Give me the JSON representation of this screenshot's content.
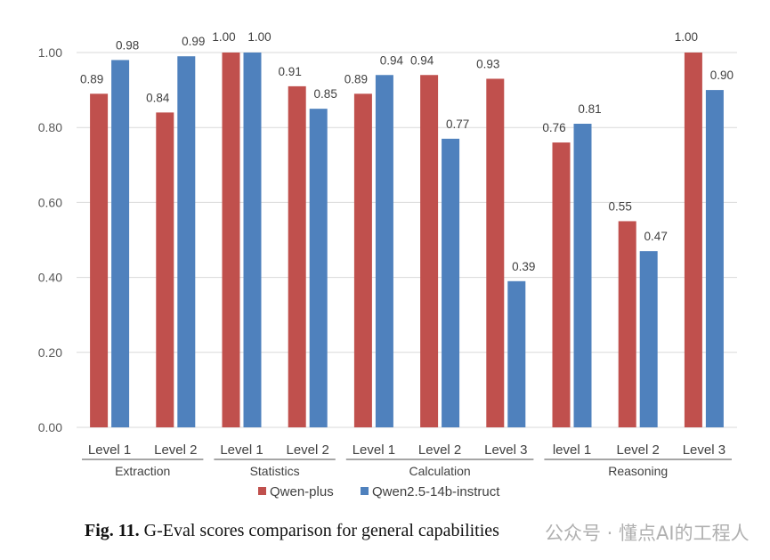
{
  "chart_data": {
    "type": "bar",
    "title": "",
    "xlabel": "",
    "ylabel": "",
    "ylim": [
      0,
      1.0
    ],
    "yticks": [
      "0.00",
      "0.20",
      "0.40",
      "0.60",
      "0.80",
      "1.00"
    ],
    "grid": true,
    "legend_position": "bottom",
    "categories": [
      "Level 1",
      "Level 2",
      "Level 1",
      "Level 2",
      "Level 1",
      "Level 2",
      "Level 3",
      "level 1",
      "Level 2",
      "Level 3"
    ],
    "groups": [
      {
        "name": "Extraction",
        "span": 2
      },
      {
        "name": "Statistics",
        "span": 2
      },
      {
        "name": "Calculation",
        "span": 3
      },
      {
        "name": "Reasoning",
        "span": 3
      }
    ],
    "series": [
      {
        "name": "Qwen-plus",
        "color": "#C0504D",
        "values": [
          0.89,
          0.84,
          1.0,
          0.91,
          0.89,
          0.94,
          0.93,
          0.76,
          0.55,
          1.0
        ]
      },
      {
        "name": "Qwen2.5-14b-instruct",
        "color": "#4F81BD",
        "values": [
          0.98,
          0.99,
          1.0,
          0.85,
          0.94,
          0.77,
          0.39,
          0.81,
          0.47,
          0.9
        ]
      }
    ]
  },
  "caption": {
    "prefix": "Fig. 11.",
    "text": " G-Eval scores comparison for general capabilities"
  },
  "watermark": "公众号 · 懂点AI的工程人"
}
